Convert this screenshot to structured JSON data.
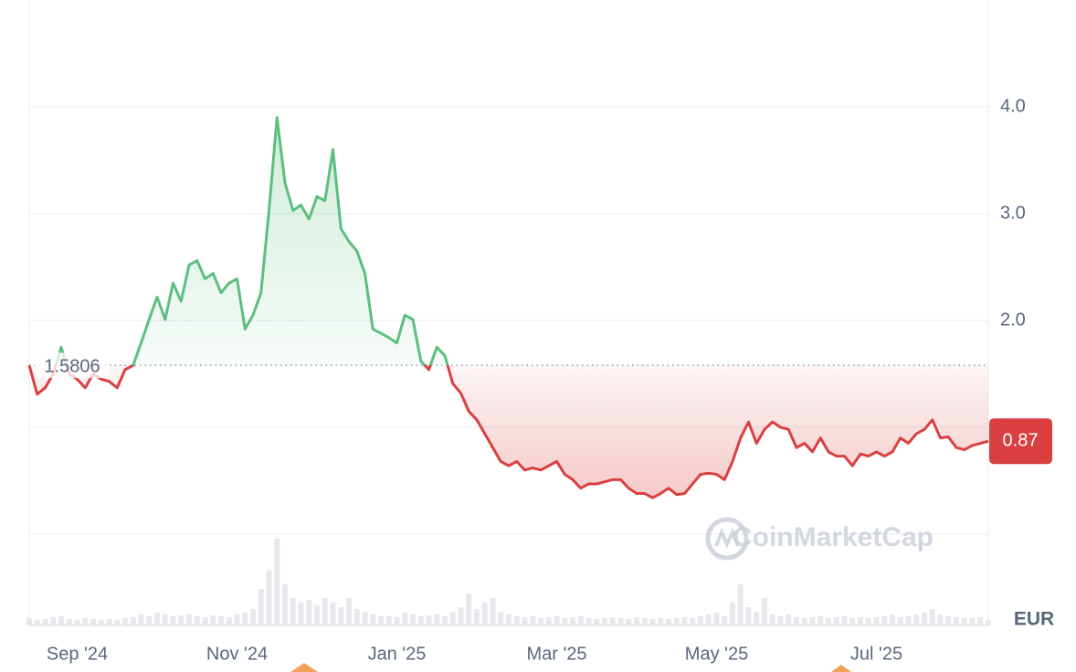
{
  "chart_data": {
    "type": "line",
    "currency": "EUR",
    "watermark": "CoinMarketCap",
    "up_color": "#5cbf7d",
    "down_color": "#d9403f",
    "baseline": 1.5806,
    "ylim": [
      0,
      5
    ],
    "yticks": [
      {
        "value": 0,
        "label": null
      },
      {
        "value": 1,
        "label": null
      },
      {
        "value": 2,
        "label": "2.0"
      },
      {
        "value": 3,
        "label": "3.0"
      },
      {
        "value": 4,
        "label": "4.0"
      }
    ],
    "grid": true,
    "categories": [
      null,
      null,
      null,
      null,
      null,
      null,
      "Sep '24",
      null,
      null,
      null,
      null,
      null,
      null,
      null,
      null,
      null,
      null,
      null,
      null,
      null,
      null,
      null,
      null,
      null,
      null,
      null,
      "Nov '24",
      null,
      null,
      null,
      null,
      null,
      null,
      null,
      null,
      null,
      null,
      null,
      null,
      null,
      null,
      null,
      null,
      null,
      null,
      null,
      "Jan '25",
      null,
      null,
      null,
      null,
      null,
      null,
      null,
      null,
      null,
      null,
      null,
      null,
      null,
      null,
      null,
      null,
      null,
      null,
      null,
      "Mar '25",
      null,
      null,
      null,
      null,
      null,
      null,
      null,
      null,
      null,
      null,
      null,
      null,
      null,
      null,
      null,
      null,
      null,
      null,
      null,
      "May '25",
      null,
      null,
      null,
      null,
      null,
      null,
      null,
      null,
      null,
      null,
      null,
      null,
      null,
      null,
      null,
      null,
      null,
      null,
      null,
      "Jul '25",
      null,
      null,
      null,
      null,
      null,
      null,
      null,
      null,
      null,
      null,
      null,
      null,
      null,
      null
    ],
    "values": [
      1.58,
      1.31,
      1.37,
      1.5,
      1.75,
      1.5,
      1.45,
      1.37,
      1.5,
      1.45,
      1.43,
      1.37,
      1.54,
      1.58,
      1.79,
      2.01,
      2.22,
      2.01,
      2.35,
      2.18,
      2.52,
      2.56,
      2.39,
      2.44,
      2.26,
      2.35,
      2.39,
      1.92,
      2.05,
      2.26,
      3.03,
      3.9,
      3.29,
      3.03,
      3.08,
      2.95,
      3.16,
      3.12,
      3.6,
      2.86,
      2.74,
      2.65,
      2.44,
      1.92,
      1.88,
      1.84,
      1.79,
      2.05,
      2.01,
      1.62,
      1.54,
      1.75,
      1.67,
      1.41,
      1.32,
      1.15,
      1.07,
      0.94,
      0.81,
      0.68,
      0.64,
      0.68,
      0.6,
      0.62,
      0.6,
      0.64,
      0.68,
      0.56,
      0.51,
      0.43,
      0.47,
      0.47,
      0.49,
      0.51,
      0.51,
      0.43,
      0.38,
      0.38,
      0.34,
      0.38,
      0.43,
      0.37,
      0.38,
      0.47,
      0.56,
      0.57,
      0.56,
      0.51,
      0.68,
      0.9,
      1.05,
      0.85,
      0.98,
      1.05,
      1.0,
      0.98,
      0.81,
      0.85,
      0.77,
      0.9,
      0.77,
      0.73,
      0.73,
      0.64,
      0.75,
      0.73,
      0.77,
      0.73,
      0.77,
      0.9,
      0.85,
      0.94,
      0.98,
      1.07,
      0.9,
      0.91,
      0.81,
      0.79,
      0.83,
      0.85,
      0.87
    ],
    "volume_color": "#e6e8ec",
    "volume_lim": [
      0,
      100
    ],
    "volume": [
      8,
      6,
      7,
      9,
      10,
      7,
      6,
      8,
      7,
      6,
      7,
      6,
      8,
      9,
      12,
      10,
      14,
      12,
      10,
      11,
      12,
      10,
      9,
      11,
      10,
      9,
      12,
      14,
      18,
      40,
      60,
      95,
      45,
      30,
      25,
      28,
      22,
      30,
      25,
      20,
      30,
      18,
      15,
      12,
      10,
      10,
      9,
      14,
      12,
      10,
      11,
      12,
      10,
      15,
      20,
      35,
      18,
      25,
      30,
      15,
      12,
      10,
      9,
      10,
      8,
      9,
      10,
      8,
      9,
      10,
      8,
      7,
      8,
      9,
      8,
      7,
      9,
      8,
      7,
      8,
      7,
      8,
      9,
      8,
      10,
      12,
      14,
      10,
      25,
      45,
      20,
      15,
      30,
      12,
      10,
      12,
      9,
      8,
      9,
      10,
      8,
      9,
      10,
      8,
      9,
      8,
      9,
      10,
      12,
      9,
      10,
      12,
      14,
      18,
      12,
      10,
      9,
      8,
      8,
      9,
      6
    ]
  }
}
